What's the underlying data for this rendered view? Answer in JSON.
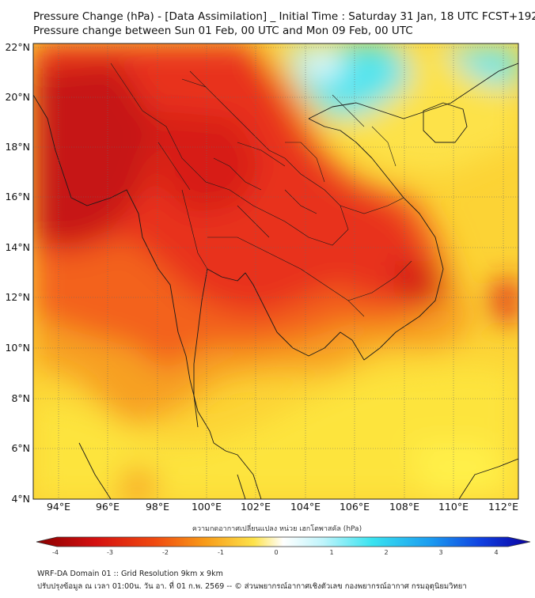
{
  "titles": {
    "line1": "Pressure Change (hPa) - [Data Assimilation] _ Initial Time : Saturday 31 Jan, 18 UTC FCST+192",
    "line2": "Pressure change between Sun 01 Feb, 00 UTC and Mon 09 Feb, 00 UTC"
  },
  "axes": {
    "lat_labels": [
      "22°N",
      "20°N",
      "18°N",
      "16°N",
      "14°N",
      "12°N",
      "10°N",
      "8°N",
      "6°N",
      "4°N"
    ],
    "lon_labels": [
      "94°E",
      "96°E",
      "98°E",
      "100°E",
      "102°E",
      "104°E",
      "106°E",
      "108°E",
      "110°E",
      "112°E"
    ]
  },
  "colorbar": {
    "title": "ความกดอากาศเปลี่ยนแปลง หน่วย เฮกโตพาสคัล (hPa)",
    "tick_labels": [
      "-4",
      "-3",
      "-2",
      "-1",
      "0",
      "1",
      "2",
      "3",
      "4"
    ]
  },
  "colors": {
    "strong_fall": "#b01010",
    "fall": "#e82a10",
    "mild_fall": "#f57a14",
    "slight_fall": "#fbb41e",
    "near_zero": "#fde84a",
    "neutral": "#ffffff",
    "rise": "#39e3f0",
    "strong_rise": "#0a00b0"
  },
  "footer": {
    "line1": "WRF-DA Domain 01 :: Grid Resolution 9km x 9km",
    "line2": "ปรับปรุงข้อมูล ณ เวลา 01:00น. วัน อา. ที่ 01 ก.พ. 2569 -- © ส่วนพยากรณ์อากาศเชิงตัวเลข กองพยากรณ์อากาศ กรมอุตุนิยมวิทยา"
  }
}
